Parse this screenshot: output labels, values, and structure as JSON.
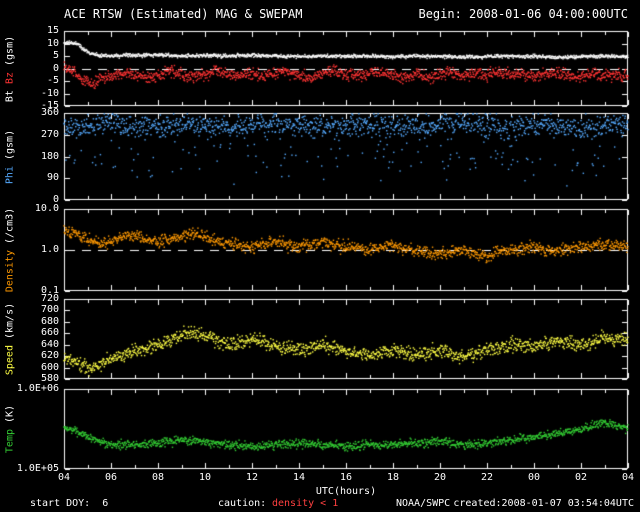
{
  "title": {
    "left": "ACE RTSW (Estimated) MAG & SWEPAM",
    "right": "Begin: 2008-01-06 04:00:00UTC"
  },
  "footer": {
    "start_doy": "start DOY:  6",
    "caution_label": "caution:",
    "caution_value": "density < 1",
    "agency": "NOAA/SWPC",
    "created": "created:2008-01-07 03:54:04UTC"
  },
  "colors": {
    "background": "#000000",
    "text": "#ffffff",
    "axis": "#ffffff",
    "bt": "#ffffff",
    "bz": "#ff3333",
    "phi": "#55aaff",
    "density": "#ff9900",
    "speed": "#ffff44",
    "temp": "#33cc33",
    "caution": "#ff4040"
  },
  "x_axis": {
    "label": "UTC(hours)",
    "ticks": [
      "04",
      "06",
      "08",
      "10",
      "12",
      "14",
      "16",
      "18",
      "20",
      "22",
      "00",
      "02",
      "04"
    ],
    "range_hours": [
      4,
      28
    ]
  },
  "chart_data": [
    {
      "type": "scatter",
      "ylabel": "Bt Bz (gsm)",
      "ylabel_parts": [
        {
          "text": "Bt",
          "color": "#ffffff"
        },
        {
          "text": "Bz",
          "color": "#ff3333"
        },
        {
          "text": "(gsm)",
          "color": "#ffffff"
        }
      ],
      "yscale": "linear",
      "ylim": [
        -15,
        15
      ],
      "yticks": [
        {
          "label": "15",
          "value": 15
        },
        {
          "label": "10",
          "value": 10
        },
        {
          "label": "5",
          "value": 5
        },
        {
          "label": "0",
          "value": 0
        },
        {
          "label": "-5",
          "value": -5
        },
        {
          "label": "-10",
          "value": -10
        },
        {
          "label": "-15",
          "value": -15
        }
      ],
      "reference_line": 0,
      "series": [
        {
          "name": "Bt",
          "color": "#ffffff",
          "jitter": 0.35,
          "jitter_mode": "add",
          "x": [
            4,
            4.6,
            4.8,
            5.1,
            5.5,
            6,
            7,
            8,
            9,
            10,
            11,
            12,
            13,
            14,
            15,
            16,
            17,
            18,
            19,
            20,
            21,
            22,
            23,
            24,
            25,
            26,
            27,
            28
          ],
          "y": [
            10.2,
            10,
            8,
            6,
            5.3,
            5,
            5.2,
            5.5,
            5,
            5.2,
            5,
            5.3,
            5,
            4.8,
            5,
            4.8,
            5,
            4.6,
            5,
            4.8,
            4.5,
            4.8,
            5,
            4.8,
            4.5,
            4.8,
            5,
            4.8
          ]
        },
        {
          "name": "Bz",
          "color": "#ff3333",
          "jitter": 1.1,
          "jitter_mode": "add",
          "x": [
            4,
            4.4,
            4.8,
            5.2,
            5.6,
            6,
            6.5,
            7,
            7.5,
            8,
            8.5,
            9,
            9.5,
            10,
            10.5,
            11,
            11.5,
            12,
            12.5,
            13,
            13.5,
            14,
            14.5,
            15,
            15.5,
            16,
            16.5,
            17,
            17.5,
            18,
            18.5,
            19,
            19.5,
            20,
            20.5,
            21,
            21.5,
            22,
            22.5,
            23,
            23.5,
            24,
            24.5,
            25,
            25.5,
            26,
            26.5,
            27,
            27.5,
            28
          ],
          "y": [
            0.5,
            -1,
            -5,
            -6,
            -4,
            -3,
            -2,
            -2.5,
            -4,
            -3,
            -1,
            -2,
            -3.5,
            -2.5,
            -1,
            -2,
            -3,
            -2,
            -3.5,
            -2,
            -1.5,
            -3,
            -4,
            -2,
            -1,
            -2.5,
            -3,
            -2,
            -1.5,
            -3,
            -3.5,
            -2,
            -4,
            -2.5,
            -1.5,
            -3,
            -2,
            -2.5,
            -1,
            -3,
            -2,
            -3,
            -2,
            -1.5,
            -3,
            -3.5,
            -2,
            -3,
            -2.5,
            -3
          ]
        }
      ]
    },
    {
      "type": "scatter",
      "ylabel": "Phi (gsm)",
      "ylabel_parts": [
        {
          "text": "Phi",
          "color": "#55aaff"
        },
        {
          "text": "(gsm)",
          "color": "#ffffff"
        }
      ],
      "yscale": "linear",
      "ylim": [
        0,
        360
      ],
      "yticks": [
        {
          "label": "360",
          "value": 360
        },
        {
          "label": "270",
          "value": 270
        },
        {
          "label": "180",
          "value": 180
        },
        {
          "label": "90",
          "value": 90
        },
        {
          "label": "0",
          "value": 0
        }
      ],
      "reference_line": null,
      "series": [
        {
          "name": "Phi",
          "color": "#55aaff",
          "jitter": 22,
          "jitter_mode": "add",
          "spikes": {
            "prob": 0.12,
            "min": 40,
            "max": 220
          },
          "x": [
            4,
            5,
            6,
            7,
            8,
            9,
            10,
            11,
            12,
            13,
            14,
            15,
            16,
            17,
            18,
            19,
            20,
            21,
            22,
            23,
            24,
            25,
            26,
            27,
            28
          ],
          "y": [
            295,
            310,
            320,
            305,
            300,
            315,
            305,
            298,
            312,
            318,
            305,
            300,
            310,
            315,
            305,
            298,
            310,
            320,
            312,
            300,
            305,
            310,
            300,
            312,
            308
          ]
        }
      ]
    },
    {
      "type": "scatter",
      "ylabel": "Density (/cm3)",
      "ylabel_parts": [
        {
          "text": "Density",
          "color": "#ff9900"
        },
        {
          "text": "(/cm3)",
          "color": "#ffffff"
        }
      ],
      "yscale": "log",
      "ylim": [
        0.1,
        10
      ],
      "yticks": [
        {
          "label": "10.0",
          "value": 10
        },
        {
          "label": "1.0",
          "value": 1
        },
        {
          "label": "0.1",
          "value": 0.1
        }
      ],
      "reference_line": 1,
      "series": [
        {
          "name": "Density",
          "color": "#ff9900",
          "jitter": 0.16,
          "jitter_mode": "mul",
          "x": [
            4,
            4.5,
            5,
            5.5,
            6,
            6.5,
            7,
            7.5,
            8,
            8.5,
            9,
            9.5,
            10,
            10.5,
            11,
            11.5,
            12,
            12.5,
            13,
            13.5,
            14,
            14.5,
            15,
            15.5,
            16,
            16.5,
            17,
            17.5,
            18,
            18.5,
            19,
            19.5,
            20,
            20.5,
            21,
            21.5,
            22,
            22.5,
            23,
            23.5,
            24,
            24.5,
            25,
            25.5,
            26,
            26.5,
            27,
            27.5,
            28
          ],
          "y": [
            3.0,
            2.5,
            1.8,
            1.5,
            1.6,
            2.0,
            2.2,
            1.8,
            1.5,
            1.8,
            2.2,
            2.5,
            2.2,
            1.8,
            1.5,
            1.3,
            1.2,
            1.4,
            1.6,
            1.3,
            1.2,
            1.4,
            1.5,
            1.3,
            1.2,
            1.1,
            1.0,
            1.2,
            1.3,
            1.1,
            0.9,
            0.85,
            0.8,
            0.9,
            1.0,
            0.8,
            0.7,
            0.9,
            1.0,
            1.1,
            1.2,
            1.0,
            0.95,
            1.1,
            1.2,
            1.3,
            1.4,
            1.3,
            1.2
          ]
        }
      ]
    },
    {
      "type": "scatter",
      "ylabel": "Speed (km/s)",
      "ylabel_parts": [
        {
          "text": "Speed",
          "color": "#ffff44"
        },
        {
          "text": "(km/s)",
          "color": "#ffffff"
        }
      ],
      "yscale": "linear",
      "ylim": [
        580,
        720
      ],
      "yticks": [
        {
          "label": "720",
          "value": 720
        },
        {
          "label": "700",
          "value": 700
        },
        {
          "label": "680",
          "value": 680
        },
        {
          "label": "660",
          "value": 660
        },
        {
          "label": "640",
          "value": 640
        },
        {
          "label": "620",
          "value": 620
        },
        {
          "label": "600",
          "value": 600
        },
        {
          "label": "580",
          "value": 580
        }
      ],
      "reference_line": null,
      "series": [
        {
          "name": "Speed",
          "color": "#ffff44",
          "jitter": 6,
          "jitter_mode": "add",
          "x": [
            4,
            4.5,
            5,
            5.5,
            6,
            6.5,
            7,
            7.5,
            8,
            8.5,
            9,
            9.5,
            10,
            10.5,
            11,
            11.5,
            12,
            12.5,
            13,
            13.5,
            14,
            14.5,
            15,
            15.5,
            16,
            16.5,
            17,
            17.5,
            18,
            18.5,
            19,
            19.5,
            20,
            20.5,
            21,
            21.5,
            22,
            22.5,
            23,
            23.5,
            24,
            24.5,
            25,
            25.5,
            26,
            26.5,
            27,
            27.5,
            28
          ],
          "y": [
            618,
            608,
            598,
            602,
            615,
            622,
            628,
            632,
            638,
            648,
            658,
            662,
            655,
            648,
            640,
            646,
            650,
            645,
            638,
            634,
            630,
            636,
            640,
            634,
            628,
            624,
            620,
            626,
            630,
            626,
            622,
            626,
            630,
            624,
            618,
            624,
            630,
            636,
            640,
            638,
            636,
            642,
            648,
            644,
            640,
            646,
            652,
            650,
            648
          ]
        }
      ]
    },
    {
      "type": "scatter",
      "ylabel": "Temp (K)",
      "ylabel_parts": [
        {
          "text": "Temp",
          "color": "#33cc33"
        },
        {
          "text": "(K)",
          "color": "#ffffff"
        }
      ],
      "yscale": "log",
      "ylim": [
        100000,
        1000000
      ],
      "yticks": [
        {
          "label": "1.0E+06",
          "value": 1000000
        },
        {
          "label": "1.0E+05",
          "value": 100000
        }
      ],
      "reference_line": null,
      "series": [
        {
          "name": "Temp",
          "color": "#33cc33",
          "jitter": 0.06,
          "jitter_mode": "mul",
          "x": [
            4,
            4.5,
            5,
            5.5,
            6,
            7,
            8,
            9,
            10,
            11,
            12,
            13,
            14,
            15,
            16,
            17,
            18,
            19,
            20,
            21,
            22,
            23,
            24,
            25,
            26,
            27,
            28
          ],
          "y": [
            320000,
            300000,
            250000,
            220000,
            200000,
            200000,
            210000,
            230000,
            220000,
            200000,
            190000,
            200000,
            210000,
            200000,
            190000,
            200000,
            200000,
            210000,
            220000,
            200000,
            210000,
            230000,
            250000,
            280000,
            310000,
            380000,
            320000
          ]
        }
      ]
    }
  ]
}
